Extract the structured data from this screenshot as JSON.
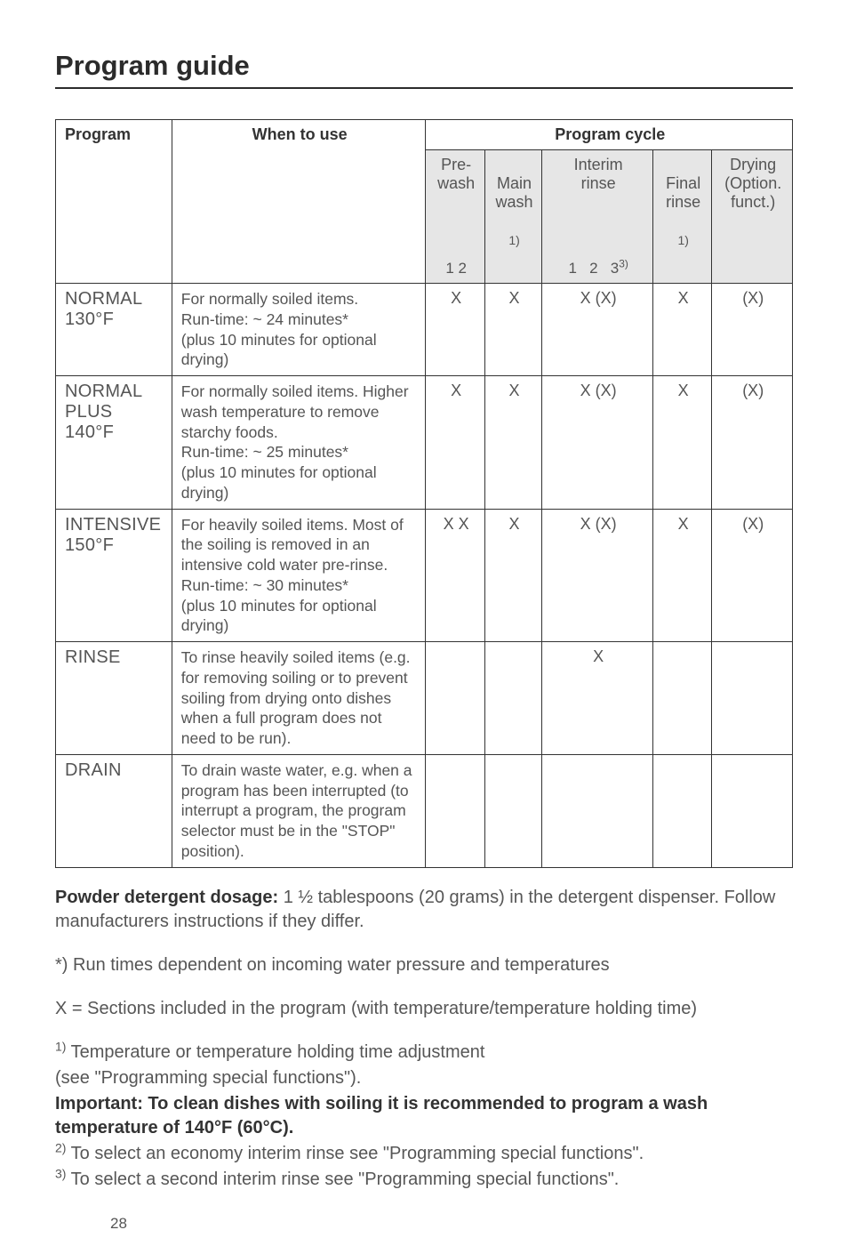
{
  "title": "Program guide",
  "page_number": "28",
  "table": {
    "head": {
      "program": "Program",
      "when_to_use": "When to use",
      "program_cycle": "Program cycle",
      "prewash": "Pre-\nwash",
      "mainwash": "Main\nwash",
      "mainwash_sup": "1)",
      "interim": "Interim\nrinse",
      "final": "Final\nrinse",
      "final_sup": "1)",
      "drying": "Drying\n(Option.\nfunct.)",
      "sub_prewash": "1   2",
      "sub_interim_1": "1",
      "sub_interim_2": "2",
      "sub_interim_3": "3",
      "sub_interim_3_sup": "3)"
    },
    "rows": [
      {
        "program": "NORMAL\n130°F",
        "desc": "For normally soiled items.\nRun-time: ~ 24 minutes*\n(plus 10 minutes for optional drying)",
        "pre": "X",
        "main": "X",
        "int": "X  (X)",
        "fin": "X",
        "dry": "(X)"
      },
      {
        "program": "NORMAL\nPLUS\n140°F",
        "desc": "For normally soiled items. Higher wash temperature to remove starchy foods.\nRun-time: ~ 25 minutes*\n(plus 10 minutes for optional drying)",
        "pre": "X",
        "main": "X",
        "int": "X  (X)",
        "fin": "X",
        "dry": "(X)"
      },
      {
        "program": "INTENSIVE\n150°F",
        "desc": "For heavily soiled items. Most of the soiling is removed in an intensive cold water pre-rinse.\nRun-time: ~ 30 minutes*\n(plus 10 minutes for optional drying)",
        "pre": "X  X",
        "main": "X",
        "int": "X  (X)",
        "fin": "X",
        "dry": "(X)"
      },
      {
        "program": "RINSE",
        "desc": "To rinse heavily soiled items (e.g. for removing soiling or to prevent soiling from drying onto dishes when a full program does not need to be run).",
        "pre": "",
        "main": "",
        "int": "X",
        "fin": "",
        "dry": ""
      },
      {
        "program": "DRAIN",
        "desc": "To drain waste water, e.g. when a program has been interrupted (to interrupt a program, the program selector must be in the \"STOP\" position).",
        "pre": "",
        "main": "",
        "int": "",
        "fin": "",
        "dry": ""
      }
    ]
  },
  "notes": {
    "dosage_label": "Powder detergent dosage:",
    "dosage_text": " 1 ½ tablespoons (20 grams) in the detergent dispenser. Follow manufacturers instructions if they differ.",
    "star": "*) Run times dependent on incoming water pressure and temperatures",
    "x_note": "X = Sections included in the program (with temperature/temperature holding time)",
    "n1_sup": "1)",
    "n1_a": " Temperature or temperature holding time adjustment",
    "n1_b": "(see \"Programming special functions\").",
    "important": "Important: To clean dishes with soiling it is recommended to program a wash temperature of 140°F (60°C).",
    "n2_sup": "2)",
    "n2": " To select an economy interim rinse see \"Programming special functions\".",
    "n3_sup": "3)",
    "n3": " To select a second interim rinse see \"Programming special functions\"."
  }
}
